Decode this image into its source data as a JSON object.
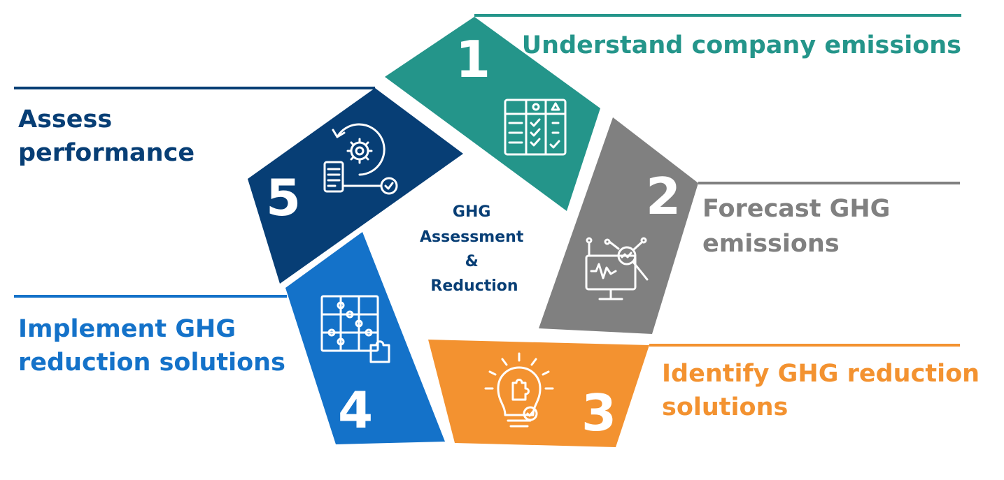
{
  "colors": {
    "step1": "#24958a",
    "step2": "#808080",
    "step3": "#f39230",
    "step4": "#1472c9",
    "step5": "#073e75",
    "center_text": "#073e75"
  },
  "center": {
    "lines": [
      "GHG",
      "Assessment",
      "&",
      "Reduction"
    ]
  },
  "steps": [
    {
      "number": "1",
      "label_lines": [
        "Understand company emissions"
      ],
      "icon": "checklist-table-icon"
    },
    {
      "number": "2",
      "label_lines": [
        "Forecast GHG",
        "emissions"
      ],
      "icon": "monitor-analytics-icon"
    },
    {
      "number": "3",
      "label_lines": [
        "Identify GHG reduction",
        "solutions"
      ],
      "icon": "lightbulb-puzzle-icon"
    },
    {
      "number": "4",
      "label_lines": [
        "Implement GHG",
        "reduction solutions"
      ],
      "icon": "puzzle-grid-icon"
    },
    {
      "number": "5",
      "label_lines": [
        "Assess",
        "performance"
      ],
      "icon": "gear-cycle-icon"
    }
  ]
}
